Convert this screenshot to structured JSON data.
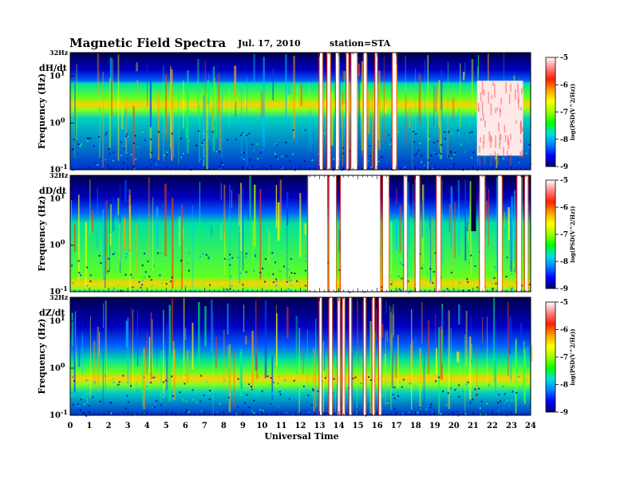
{
  "header": {
    "title": "Magnetic Field Spectra",
    "date": "Jul. 17, 2010",
    "station": "station=STA"
  },
  "chart_data": {
    "type": "heatmap",
    "xlabel": "Universal Time",
    "x_ticks": [
      "0",
      "1",
      "2",
      "3",
      "4",
      "5",
      "6",
      "7",
      "8",
      "9",
      "10",
      "11",
      "12",
      "13",
      "14",
      "15",
      "16",
      "17",
      "18",
      "19",
      "20",
      "21",
      "22",
      "23",
      "24"
    ],
    "xlim": [
      0,
      24
    ],
    "ylabel": "Frequency (Hz)",
    "y_scale": "log",
    "ylim": [
      0.1,
      32
    ],
    "y_top_label": "32Hz",
    "y_ticks": [
      {
        "value": 10,
        "base": "10",
        "exp": "1"
      },
      {
        "value": 1,
        "base": "10",
        "exp": "0"
      },
      {
        "value": 0.1,
        "base": "10",
        "exp": "-1"
      }
    ],
    "colorbar": {
      "label": "log(PSD(V^2/Hz))",
      "ticks": [
        "-5",
        "-6",
        "-7",
        "-8",
        "-9"
      ],
      "range": [
        -9,
        -5
      ],
      "colors": [
        "#000070",
        "#0000ff",
        "#0080ff",
        "#00e0e0",
        "#00ff00",
        "#a0ff00",
        "#ffff00",
        "#ffa000",
        "#ff2000",
        "#ff8080",
        "#ffffff"
      ]
    },
    "panels": [
      {
        "label": "dH/dt",
        "band_top_hz": 8,
        "green_start_hz": 7,
        "bright_band_hz": 2.5,
        "gaps": [
          [
            13.0,
            13.15
          ],
          [
            13.4,
            13.55
          ],
          [
            13.85,
            14.0
          ],
          [
            14.4,
            14.5
          ],
          [
            14.65,
            14.95
          ],
          [
            15.3,
            15.45
          ],
          [
            15.9,
            16.0
          ],
          [
            16.8,
            17.0
          ]
        ],
        "white_patch": {
          "t0": 21.2,
          "t1": 23.6,
          "f0": 0.2,
          "f1": 8
        }
      },
      {
        "label": "dD/dt",
        "band_top_hz": 5,
        "green_start_hz": 3,
        "bright_band_hz": 0.15,
        "gaps": [
          [
            12.4,
            13.4
          ],
          [
            13.5,
            13.85
          ],
          [
            14.1,
            16.15
          ],
          [
            16.3,
            16.6
          ],
          [
            17.4,
            17.55
          ],
          [
            18.0,
            18.2
          ],
          [
            19.1,
            19.3
          ],
          [
            21.35,
            21.6
          ],
          [
            22.3,
            22.5
          ],
          [
            23.3,
            23.5
          ],
          [
            23.7,
            23.85
          ]
        ],
        "dark_column": {
          "t0": 20.9,
          "t1": 21.15
        }
      },
      {
        "label": "dZ/dt",
        "band_top_hz": 3,
        "green_start_hz": 1.5,
        "bright_band_hz": 0.6,
        "gaps": [
          [
            13.0,
            13.1
          ],
          [
            13.5,
            13.65
          ],
          [
            13.95,
            14.05
          ],
          [
            14.2,
            14.3
          ],
          [
            14.55,
            14.65
          ],
          [
            15.3,
            15.4
          ],
          [
            15.75,
            15.85
          ],
          [
            16.1,
            16.2
          ]
        ]
      }
    ]
  }
}
